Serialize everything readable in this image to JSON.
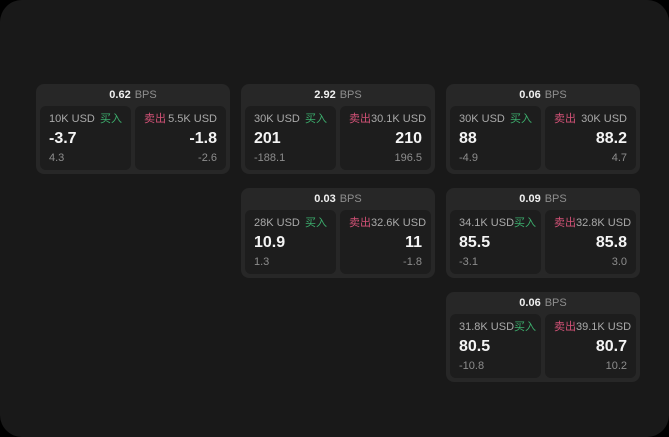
{
  "labels": {
    "bps_unit": "BPS",
    "buy": "买入",
    "sell": "卖出"
  },
  "colors": {
    "buy_green": "#3cae6d",
    "sell_red": "#d35277",
    "page_bg": "#191919",
    "card_bg": "#272727",
    "tile_bg": "#1d1d1d"
  },
  "cards": [
    {
      "bps": "0.62",
      "buy": {
        "amount": "10K USD",
        "price": "-3.7",
        "change": "4.3"
      },
      "sell": {
        "amount": "5.5K USD",
        "price": "-1.8",
        "change": "-2.6"
      }
    },
    {
      "bps": "2.92",
      "buy": {
        "amount": "30K USD",
        "price": "201",
        "change": "-188.1"
      },
      "sell": {
        "amount": "30.1K USD",
        "price": "210",
        "change": "196.5"
      }
    },
    {
      "bps": "0.06",
      "buy": {
        "amount": "30K USD",
        "price": "88",
        "change": "-4.9"
      },
      "sell": {
        "amount": "30K USD",
        "price": "88.2",
        "change": "4.7"
      }
    },
    {
      "bps": "0.03",
      "buy": {
        "amount": "28K USD",
        "price": "10.9",
        "change": "1.3"
      },
      "sell": {
        "amount": "32.6K USD",
        "price": "11",
        "change": "-1.8"
      }
    },
    {
      "bps": "0.09",
      "buy": {
        "amount": "34.1K USD",
        "price": "85.5",
        "change": "-3.1"
      },
      "sell": {
        "amount": "32.8K USD",
        "price": "85.8",
        "change": "3.0"
      }
    },
    {
      "bps": "0.06",
      "buy": {
        "amount": "31.8K USD",
        "price": "80.5",
        "change": "-10.8"
      },
      "sell": {
        "amount": "39.1K USD",
        "price": "80.7",
        "change": "10.2"
      }
    }
  ]
}
